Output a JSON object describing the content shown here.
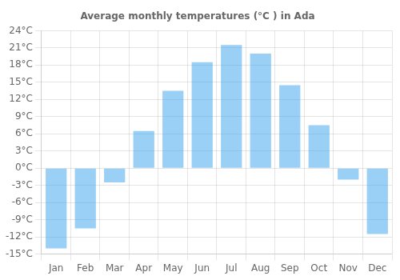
{
  "chart_data": {
    "type": "bar",
    "title": "Average monthly temperatures (°C ) in Ada",
    "categories": [
      "Jan",
      "Feb",
      "Mar",
      "Apr",
      "May",
      "Jun",
      "Jul",
      "Aug",
      "Sep",
      "Oct",
      "Nov",
      "Dec"
    ],
    "values": [
      -14,
      -10.5,
      -2.5,
      6.5,
      13.5,
      18.5,
      21.5,
      20,
      14.5,
      7.5,
      -2,
      -11.5
    ],
    "ylim": [
      -15,
      24
    ],
    "yticks": [
      {
        "value": -15,
        "label": "-15°C"
      },
      {
        "value": -12,
        "label": "-12°C"
      },
      {
        "value": -9,
        "label": "-9°C"
      },
      {
        "value": -6,
        "label": "-6°C"
      },
      {
        "value": -3,
        "label": "-3°C"
      },
      {
        "value": 0,
        "label": "0°C"
      },
      {
        "value": 3,
        "label": "3°C"
      },
      {
        "value": 6,
        "label": "6°C"
      },
      {
        "value": 9,
        "label": "9°C"
      },
      {
        "value": 12,
        "label": "12°C"
      },
      {
        "value": 15,
        "label": "15°C"
      },
      {
        "value": 18,
        "label": "18°C"
      },
      {
        "value": 21,
        "label": "21°C"
      },
      {
        "value": 24,
        "label": "24°C"
      }
    ],
    "grid": true
  }
}
